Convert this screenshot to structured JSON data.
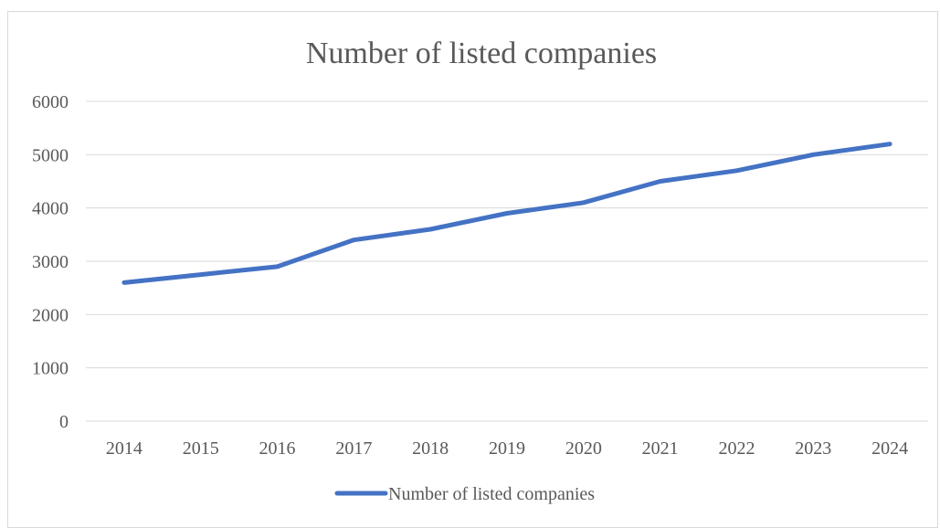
{
  "chart_data": {
    "type": "line",
    "title": "Number of listed companies",
    "xlabel": "",
    "ylabel": "",
    "categories": [
      "2014",
      "2015",
      "2016",
      "2017",
      "2018",
      "2019",
      "2020",
      "2021",
      "2022",
      "2023",
      "2024"
    ],
    "series": [
      {
        "name": "Number of listed companies",
        "values": [
          2600,
          2750,
          2900,
          3400,
          3600,
          3900,
          4100,
          4500,
          4700,
          5000,
          5200
        ],
        "color": "#4472c4"
      }
    ],
    "ylim": [
      0,
      6000
    ],
    "yticks": [
      "0",
      "1000",
      "2000",
      "3000",
      "4000",
      "5000",
      "6000"
    ],
    "grid": true,
    "legend_position": "bottom"
  }
}
